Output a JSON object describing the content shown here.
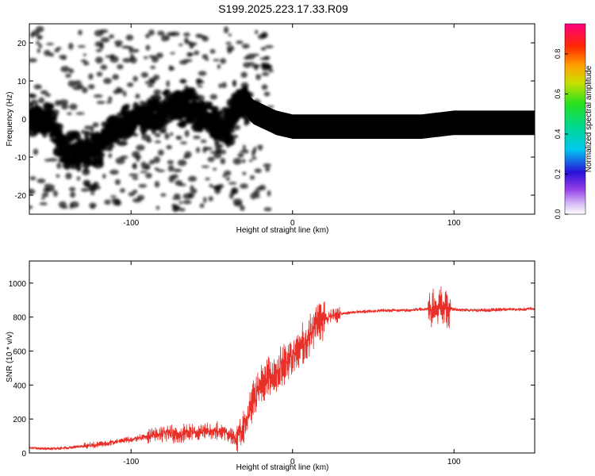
{
  "title": "S199.2025.223.17.33.R09",
  "chart_data": [
    {
      "type": "heatmap",
      "xlabel": "Height of straight line (km)",
      "ylabel": "Frequency (Hz)",
      "xlim": [
        -163,
        150
      ],
      "ylim": [
        -25,
        25
      ],
      "xticks": [
        -100,
        0,
        100
      ],
      "yticks": [
        -20,
        -10,
        0,
        10,
        20
      ],
      "colorbar": {
        "label": "Normalized spectral amplitude",
        "range": [
          0,
          0.95
        ],
        "ticks": [
          0.0,
          0.2,
          0.4,
          0.6,
          0.8
        ],
        "tick_labels": [
          "0.0",
          "0.2",
          "0.4",
          "0.6",
          "0.8"
        ]
      },
      "ridge": {
        "x": [
          -163,
          -150,
          -140,
          -130,
          -120,
          -110,
          -100,
          -90,
          -80,
          -70,
          -60,
          -50,
          -45,
          -40,
          -35,
          -30,
          -25,
          -20,
          -10,
          0,
          20,
          50,
          80,
          100,
          120,
          150
        ],
        "freq": [
          0,
          -1,
          -9,
          -8,
          -8,
          -2,
          -1,
          1,
          2,
          3,
          2,
          0,
          -3,
          -2,
          4,
          5,
          2,
          1,
          -1,
          -2,
          -2,
          -2,
          -2,
          -1,
          -1,
          -1
        ]
      }
    },
    {
      "type": "line",
      "xlabel": "Height of straight line (km)",
      "ylabel": "SNR (10 * v/v)",
      "xlim": [
        -163,
        150
      ],
      "ylim": [
        0,
        1130
      ],
      "xticks": [
        -100,
        0,
        100
      ],
      "yticks": [
        0,
        200,
        400,
        600,
        800,
        1000
      ],
      "series": [
        {
          "name": "SNR",
          "color": "#e8302a",
          "x": [
            -163,
            -150,
            -140,
            -130,
            -120,
            -110,
            -100,
            -90,
            -80,
            -70,
            -60,
            -50,
            -40,
            -35,
            -30,
            -25,
            -20,
            -15,
            -10,
            -5,
            0,
            5,
            10,
            15,
            20,
            25,
            30,
            40,
            50,
            60,
            70,
            80,
            85,
            90,
            92,
            95,
            100,
            110,
            120,
            130,
            140,
            150
          ],
          "y": [
            30,
            25,
            30,
            40,
            50,
            65,
            80,
            100,
            120,
            110,
            120,
            130,
            120,
            80,
            160,
            300,
            400,
            460,
            480,
            520,
            580,
            620,
            680,
            760,
            790,
            810,
            820,
            830,
            835,
            840,
            840,
            845,
            850,
            855,
            870,
            850,
            845,
            840,
            840,
            845,
            845,
            850
          ]
        }
      ]
    }
  ]
}
